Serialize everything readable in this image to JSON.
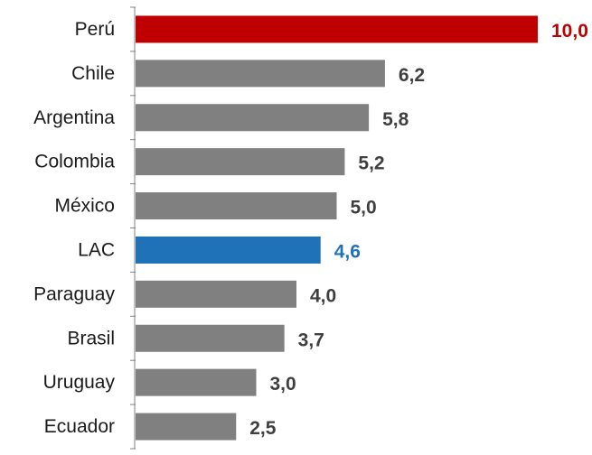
{
  "chart_data": {
    "type": "bar",
    "orientation": "horizontal",
    "categories": [
      "Perú",
      "Chile",
      "Argentina",
      "Colombia",
      "México",
      "LAC",
      "Paraguay",
      "Brasil",
      "Uruguay",
      "Ecuador"
    ],
    "values": [
      10.0,
      6.2,
      5.8,
      5.2,
      5.0,
      4.6,
      4.0,
      3.7,
      3.0,
      2.5
    ],
    "value_labels": [
      "10,0",
      "6,2",
      "5,8",
      "5,2",
      "5,0",
      "4,6",
      "4,0",
      "3,7",
      "3,0",
      "2,5"
    ],
    "bar_colors": [
      "#c00000",
      "#808080",
      "#808080",
      "#808080",
      "#808080",
      "#1f72b8",
      "#808080",
      "#808080",
      "#808080",
      "#808080"
    ],
    "label_colors": [
      "#c00000",
      "#3f3f3f",
      "#3f3f3f",
      "#3f3f3f",
      "#3f3f3f",
      "#1f72b8",
      "#3f3f3f",
      "#3f3f3f",
      "#3f3f3f",
      "#3f3f3f"
    ],
    "xlim": [
      0,
      10
    ],
    "grid": false,
    "title": "",
    "xlabel": "",
    "ylabel": ""
  }
}
